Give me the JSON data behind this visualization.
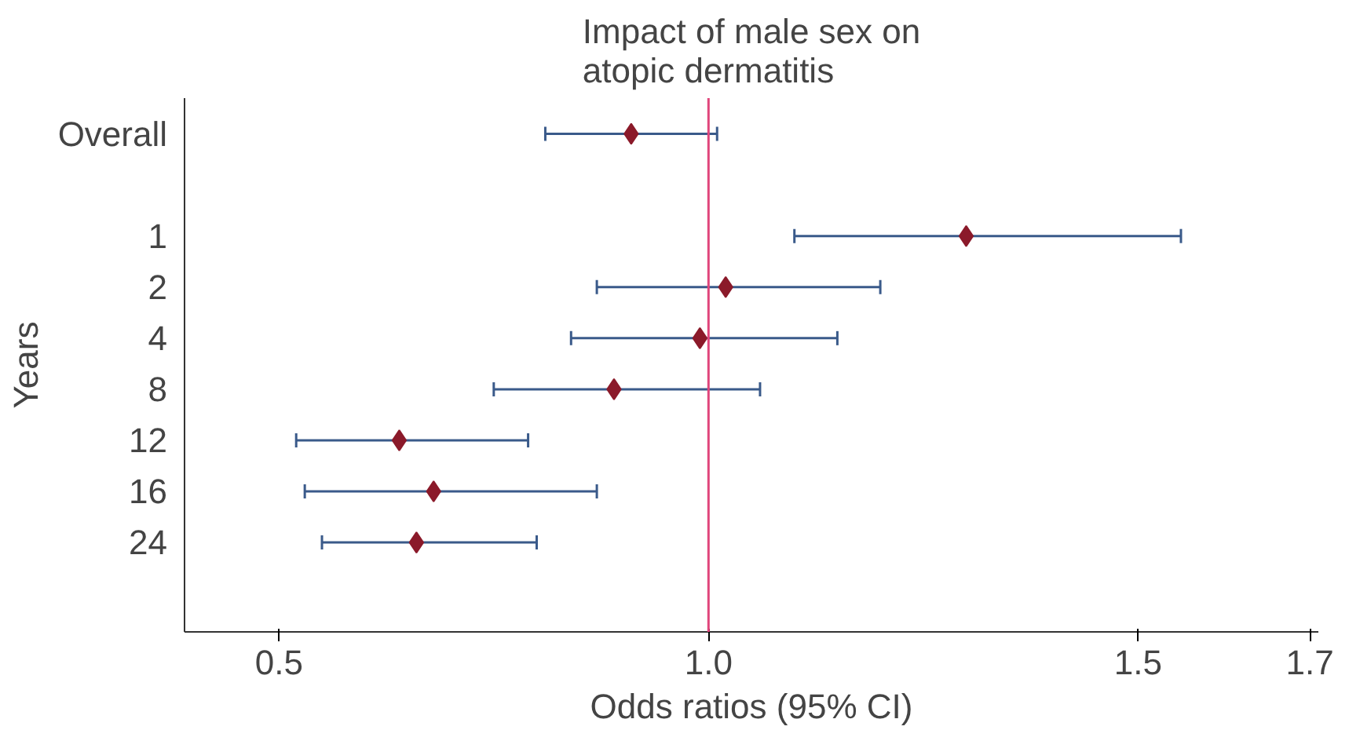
{
  "chart_data": {
    "type": "scatter",
    "orientation": "horizontal",
    "title": "Impact of male sex on\natopic dermatitis",
    "xlabel": "Odds ratios (95% CI)",
    "ylabel": "Years",
    "categories": [
      "Overall",
      null,
      "1",
      "2",
      "4",
      "8",
      "12",
      "16",
      "24"
    ],
    "series": [
      {
        "color": "#8b1a2a",
        "values": [
          0.91,
          null,
          1.3,
          1.02,
          0.99,
          0.89,
          0.64,
          0.68,
          0.66
        ],
        "errors": [
          [
            0.81,
            1.01
          ],
          null,
          [
            1.1,
            1.55
          ],
          [
            0.87,
            1.2
          ],
          [
            0.84,
            1.15
          ],
          [
            0.75,
            1.06
          ],
          [
            0.52,
            0.79
          ],
          [
            0.53,
            0.87
          ],
          [
            0.55,
            0.8
          ]
        ]
      }
    ],
    "marker": "diamond",
    "xlim": [
      0.39,
      1.71
    ],
    "xticks": [
      0.5,
      {
        "value": 1.0,
        "label": "1.0"
      },
      1.5,
      1.7
    ],
    "ref_lines": [
      {
        "axis": "x",
        "value": 1.0,
        "color": "#e0457b"
      }
    ],
    "grid": false
  }
}
